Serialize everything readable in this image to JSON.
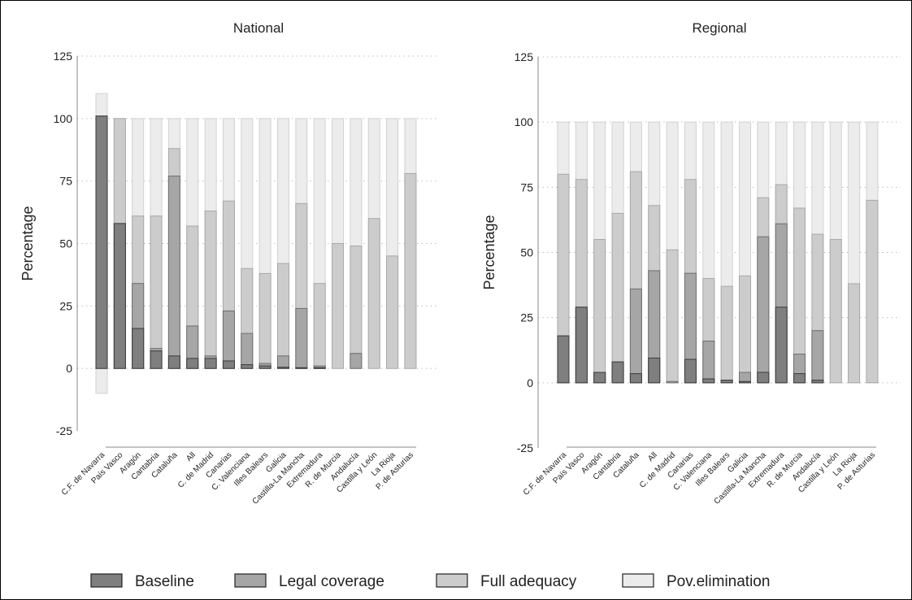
{
  "colors": {
    "Baseline": "#7f7f7f",
    "Legal coverage": "#a6a6a6",
    "Full adequacy": "#cccccc",
    "Pov.elimination": "#ececec"
  },
  "legend": {
    "entries": [
      "Baseline",
      "Legal coverage",
      "Full adequacy",
      "Pov.elimination"
    ]
  },
  "chart_data": [
    {
      "type": "bar",
      "stacked": "overlay",
      "title": "National",
      "ylabel": "Percentage",
      "ylim": [
        -25,
        125
      ],
      "yticks": [
        -25,
        0,
        25,
        50,
        75,
        100,
        125
      ],
      "grid": true,
      "categories": [
        "C.F. de Navarra",
        "País Vasco",
        "Aragón",
        "Cantabria",
        "Cataluña",
        "All",
        "C. de Madrid",
        "Canarias",
        "C. Valenciana",
        "Illes Balears",
        "Galicia",
        "Castilla-La Mancha",
        "Extremadura",
        "R. de Murcia",
        "Andalucía",
        "Castilla y León",
        "La Rioja",
        "P. de Asturias"
      ],
      "series": [
        {
          "name": "Pov.elimination",
          "values": [
            110,
            100,
            100,
            100,
            100,
            100,
            100,
            100,
            100,
            100,
            100,
            100,
            100,
            100,
            100,
            100,
            100,
            100
          ],
          "low": [
            -10,
            0,
            0,
            0,
            0,
            0,
            0,
            0,
            0,
            0,
            0,
            0,
            0,
            0,
            0,
            0,
            0,
            0
          ]
        },
        {
          "name": "Full adequacy",
          "values": [
            101,
            100,
            61,
            61,
            88,
            57,
            63,
            67,
            40,
            38,
            42,
            66,
            34,
            50,
            49,
            60,
            45,
            78
          ]
        },
        {
          "name": "Legal coverage",
          "values": [
            101,
            58,
            34,
            8,
            77,
            17,
            5,
            23,
            14,
            2,
            5,
            24,
            1,
            0,
            6,
            0,
            0,
            0
          ]
        },
        {
          "name": "Baseline",
          "values": [
            101,
            58,
            16,
            7,
            5,
            4,
            4,
            3,
            1.5,
            1,
            0.5,
            0.3,
            0.3,
            0,
            0,
            0,
            0,
            0
          ]
        }
      ]
    },
    {
      "type": "bar",
      "stacked": "overlay",
      "title": "Regional",
      "ylabel": "Percentage",
      "ylim": [
        -25,
        125
      ],
      "yticks": [
        -25,
        0,
        25,
        50,
        75,
        100,
        125
      ],
      "grid": true,
      "categories": [
        "C.F. de Navarra",
        "País Vasco",
        "Aragón",
        "Cantabria",
        "Cataluña",
        "All",
        "C. de Madrid",
        "Canarias",
        "C. Valenciana",
        "Illes Balears",
        "Galicia",
        "Castilla-La Mancha",
        "Extremadura",
        "R. de Murcia",
        "Andalucía",
        "Castilla y León",
        "La Rioja",
        "P. de Asturias"
      ],
      "series": [
        {
          "name": "Pov.elimination",
          "values": [
            100,
            100,
            100,
            100,
            100,
            100,
            100,
            100,
            100,
            100,
            100,
            100,
            100,
            100,
            100,
            100,
            100,
            100
          ]
        },
        {
          "name": "Full adequacy",
          "values": [
            80,
            78,
            55,
            65,
            81,
            68,
            51,
            78,
            40,
            37,
            41,
            71,
            76,
            67,
            57,
            55,
            38,
            70
          ]
        },
        {
          "name": "Legal coverage",
          "values": [
            18,
            29,
            4,
            8,
            36,
            43,
            0.5,
            42,
            16,
            1,
            4,
            56,
            61,
            11,
            20,
            0,
            0,
            0
          ]
        },
        {
          "name": "Baseline",
          "values": [
            18,
            29,
            4,
            8,
            3.5,
            9.5,
            0,
            9,
            1.5,
            1,
            0.5,
            4,
            29,
            3.5,
            1,
            0,
            0,
            0
          ]
        }
      ]
    }
  ]
}
